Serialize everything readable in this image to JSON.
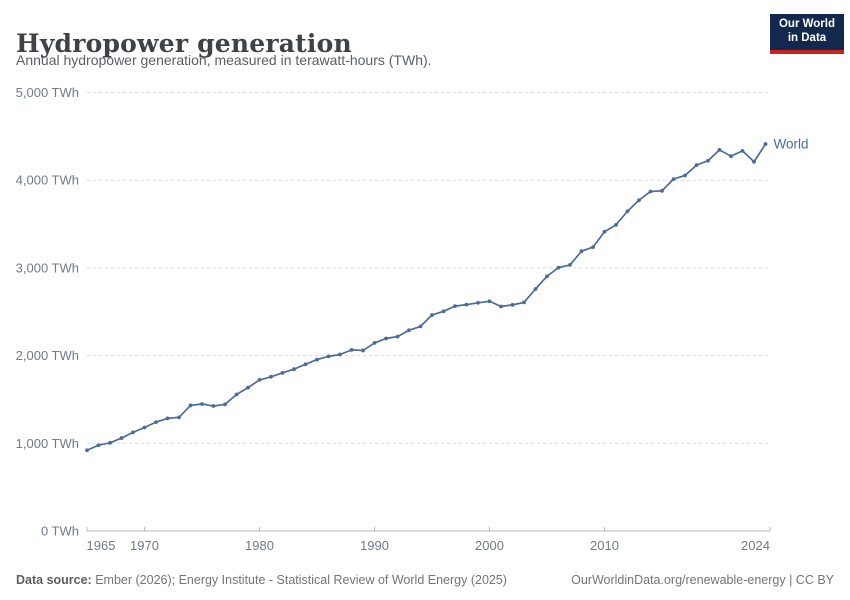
{
  "header": {
    "title": "Hydropower generation",
    "subtitle": "Annual hydropower generation, measured in terawatt-hours (TWh).",
    "logo": {
      "line1": "Our World",
      "line2": "in Data"
    }
  },
  "chart_data": {
    "type": "line",
    "title": "Hydropower generation",
    "ylabel": "TWh",
    "ylim": [
      0,
      5000
    ],
    "xlim": [
      1965,
      2024
    ],
    "grid": "horizontal-dashed",
    "legend_position": "end-of-line-label",
    "yticks": [
      0,
      1000,
      2000,
      3000,
      4000,
      5000
    ],
    "ytick_labels": [
      "0 TWh",
      "1,000 TWh",
      "2,000 TWh",
      "3,000 TWh",
      "4,000 TWh",
      "5,000 TWh"
    ],
    "xticks": [
      1965,
      1970,
      1980,
      1990,
      2000,
      2010,
      2024
    ],
    "xtick_labels": [
      "1965",
      "1970",
      "1980",
      "1990",
      "2000",
      "2010",
      "2024"
    ],
    "series": [
      {
        "name": "World",
        "color": "#4c6a9e",
        "x": [
          1965,
          1966,
          1967,
          1968,
          1969,
          1970,
          1971,
          1972,
          1973,
          1974,
          1975,
          1976,
          1977,
          1978,
          1979,
          1980,
          1981,
          1982,
          1983,
          1984,
          1985,
          1986,
          1987,
          1988,
          1989,
          1990,
          1991,
          1992,
          1993,
          1994,
          1995,
          1996,
          1997,
          1998,
          1999,
          2000,
          2001,
          2002,
          2003,
          2004,
          2005,
          2006,
          2007,
          2008,
          2009,
          2010,
          2011,
          2012,
          2013,
          2014,
          2015,
          2016,
          2017,
          2018,
          2019,
          2020,
          2021,
          2022,
          2023,
          2024
        ],
        "values": [
          920.8,
          978.1,
          1005.3,
          1059.5,
          1124.4,
          1180.0,
          1241.5,
          1283.9,
          1296.0,
          1431.7,
          1448.3,
          1425.0,
          1443.2,
          1556.2,
          1634.4,
          1722.9,
          1758.4,
          1803.4,
          1844.9,
          1901.5,
          1954.4,
          1991.3,
          2012.5,
          2064.9,
          2058.7,
          2144.6,
          2195.0,
          2216.2,
          2288.6,
          2333.1,
          2462.5,
          2504.8,
          2564.4,
          2580.9,
          2601.6,
          2619.3,
          2560.1,
          2578.2,
          2606.5,
          2759.4,
          2903.5,
          3003.1,
          3034.1,
          3190.5,
          3237.3,
          3412.3,
          3490.8,
          3646.0,
          3771.5,
          3871.4,
          3878.8,
          4012.4,
          4053.7,
          4171.7,
          4222.2,
          4345.8,
          4273.8,
          4334.7,
          4210.3,
          4412.0
        ]
      }
    ],
    "colors": {
      "grid": "#dadada",
      "axis": "#b7babd",
      "tick_label": "#747b85"
    }
  },
  "footer": {
    "datasource_label": "Data source:",
    "datasource_text": " Ember (2026); Energy Institute - Statistical Review of World Energy (2025)",
    "url": "OurWorldinData.org/renewable-energy",
    "divider": " | ",
    "license": "CC BY"
  }
}
